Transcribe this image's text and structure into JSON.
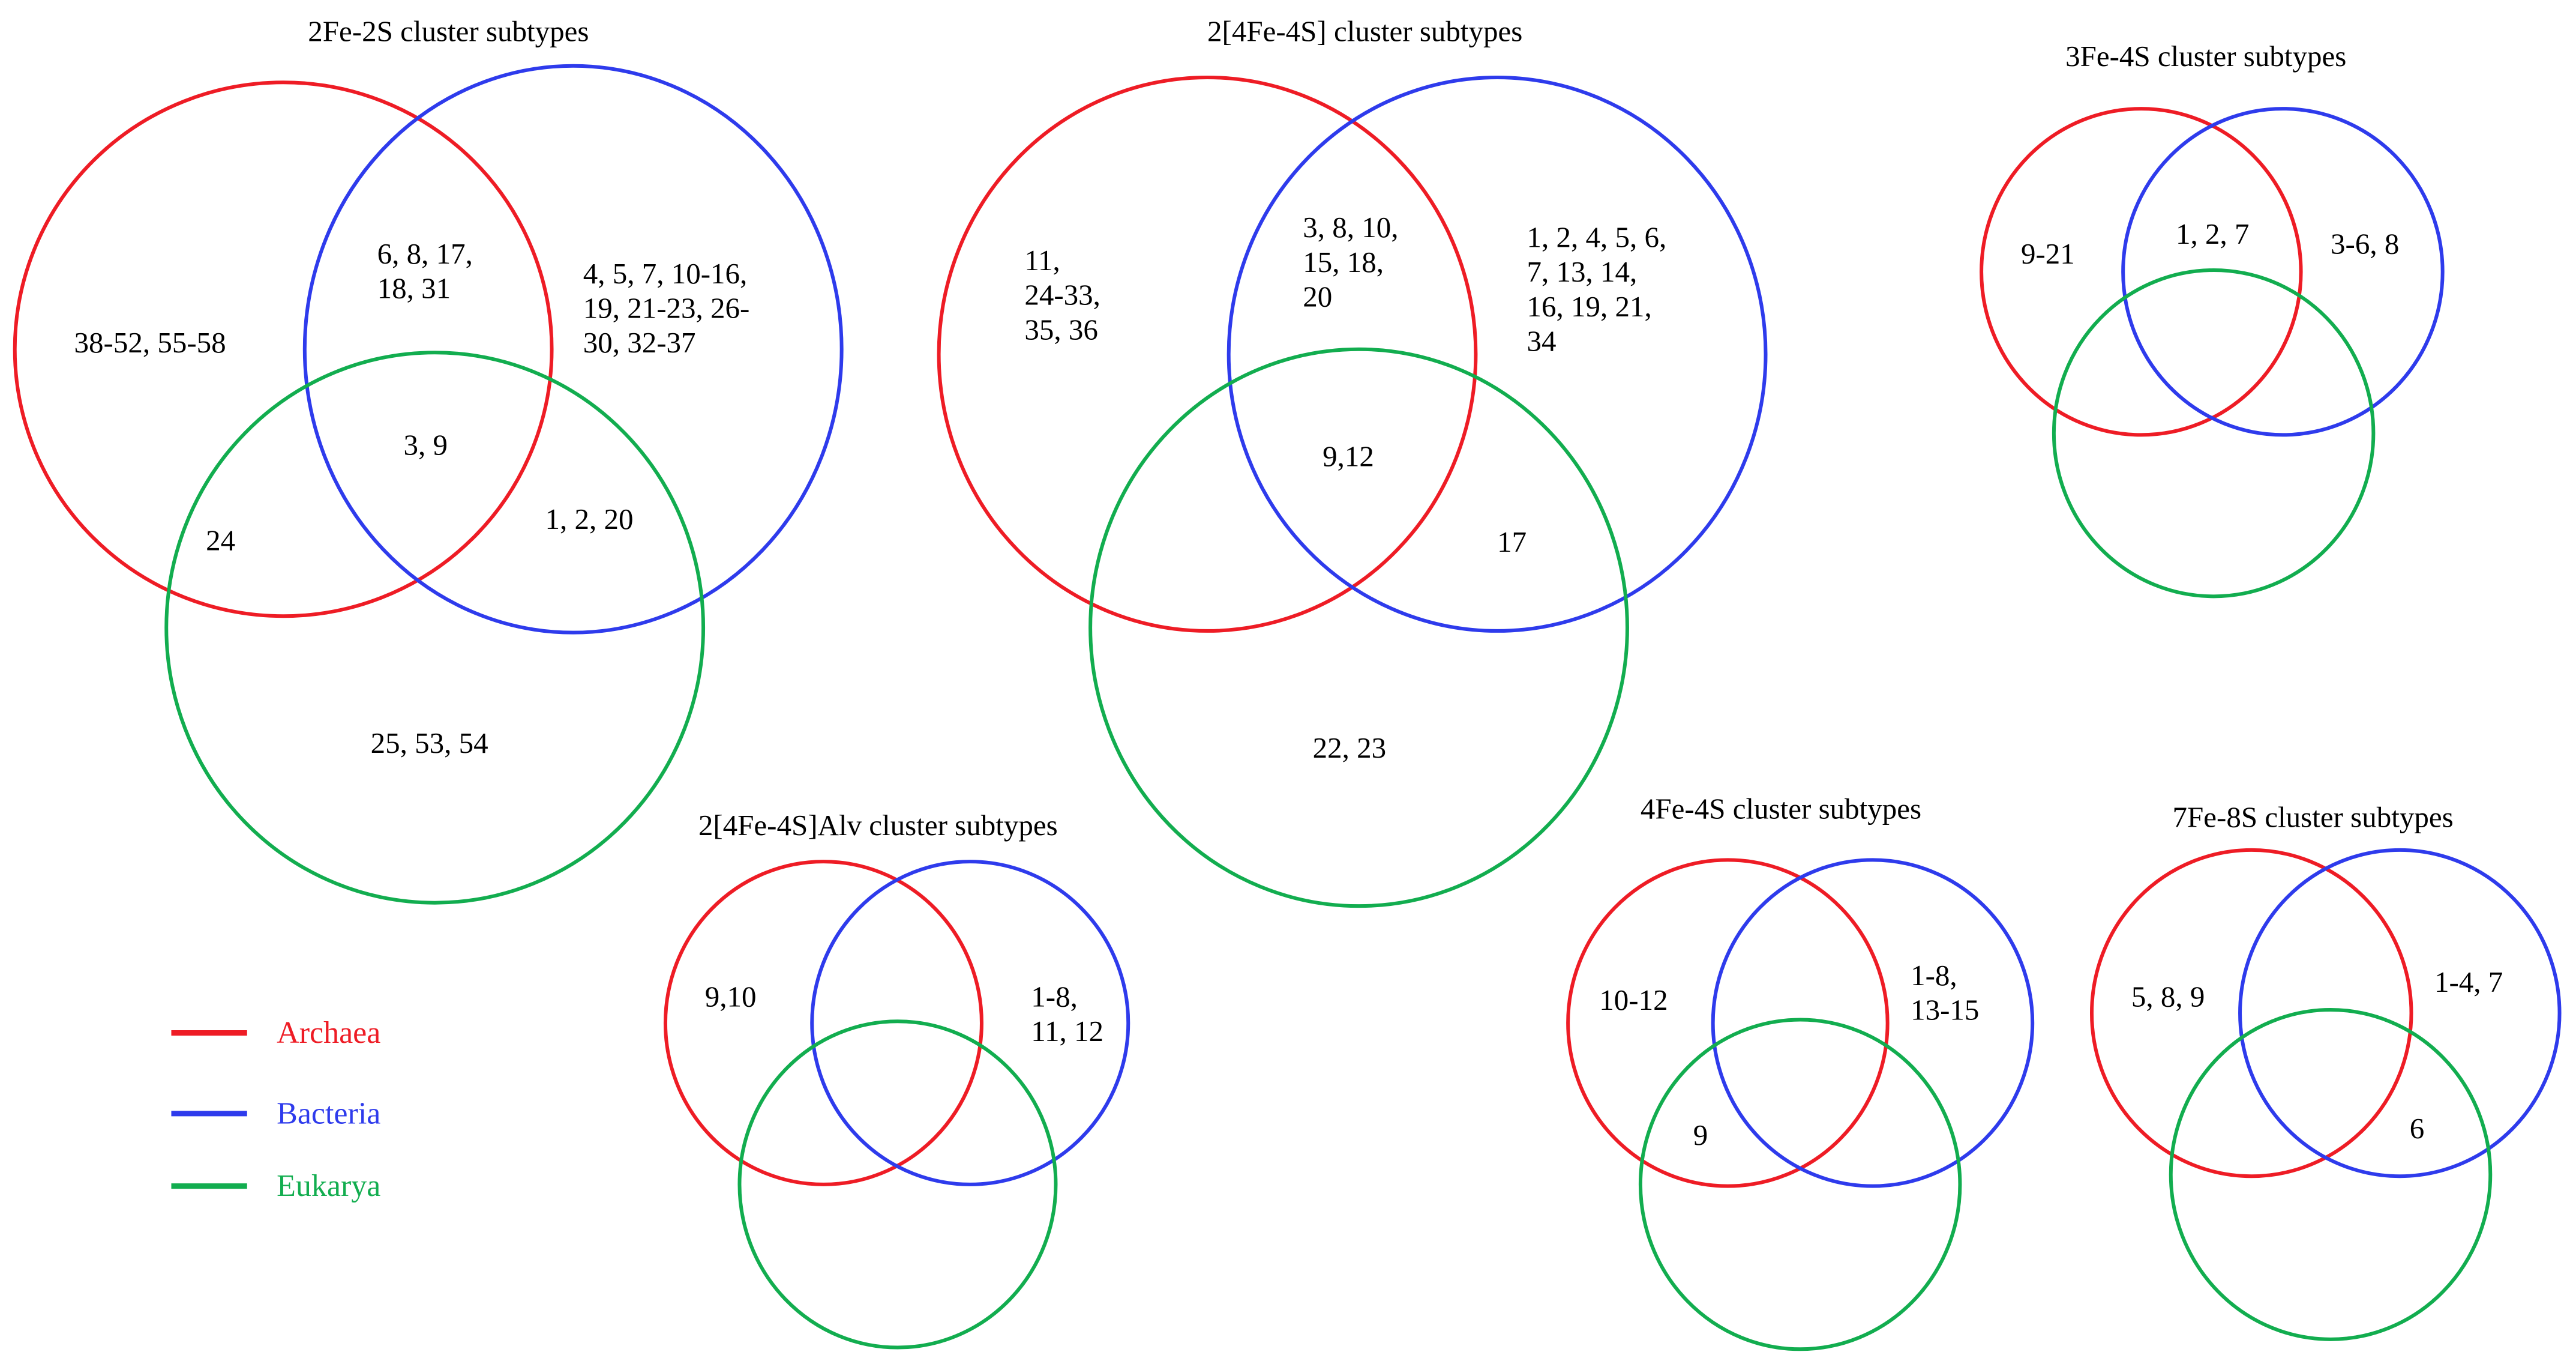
{
  "colors": {
    "archaea": "#ee1c25",
    "bacteria": "#2e3bec",
    "eukarya": "#12ad4f"
  },
  "legend": [
    {
      "label": "Archaea",
      "color": "#ee1c25"
    },
    {
      "label": "Bacteria",
      "color": "#2e3bec"
    },
    {
      "label": "Eukarya",
      "color": "#12ad4f"
    }
  ],
  "diagrams": [
    {
      "title": "2Fe-2S cluster subtypes",
      "labels": [
        [
          "38-52, 55-58"
        ],
        [
          "6, 8, 17,",
          "18, 31"
        ],
        [
          "4, 5, 7, 10-16,",
          "19, 21-23, 26-",
          "30, 32-37"
        ],
        [
          "3, 9"
        ],
        [
          "24"
        ],
        [
          "1, 2, 20"
        ],
        [
          "25, 53, 54"
        ]
      ]
    },
    {
      "title": "2[4Fe-4S] cluster subtypes",
      "labels": [
        [
          "11,",
          "24-33,",
          "35, 36"
        ],
        [
          "3, 8, 10,",
          "15, 18,",
          "20"
        ],
        [
          "1, 2, 4, 5, 6,",
          "7, 13, 14,",
          "16, 19, 21,",
          "34"
        ],
        [
          "9,12"
        ],
        [
          "17"
        ],
        [
          "22, 23"
        ]
      ]
    },
    {
      "title": "3Fe-4S cluster subtypes",
      "labels": [
        [
          "9-21"
        ],
        [
          "1, 2, 7"
        ],
        [
          "3-6, 8"
        ]
      ]
    },
    {
      "title": "2[4Fe-4S]Alv cluster subtypes",
      "labels": [
        [
          "9,10"
        ],
        [
          "1-8,",
          "11, 12"
        ]
      ]
    },
    {
      "title": "4Fe-4S cluster subtypes",
      "labels": [
        [
          "10-12"
        ],
        [
          "1-8,",
          "13-15"
        ],
        [
          "9"
        ]
      ]
    },
    {
      "title": "7Fe-8S cluster subtypes",
      "labels": [
        [
          "5, 8, 9"
        ],
        [
          "1-4, 7"
        ],
        [
          "6"
        ]
      ]
    }
  ]
}
